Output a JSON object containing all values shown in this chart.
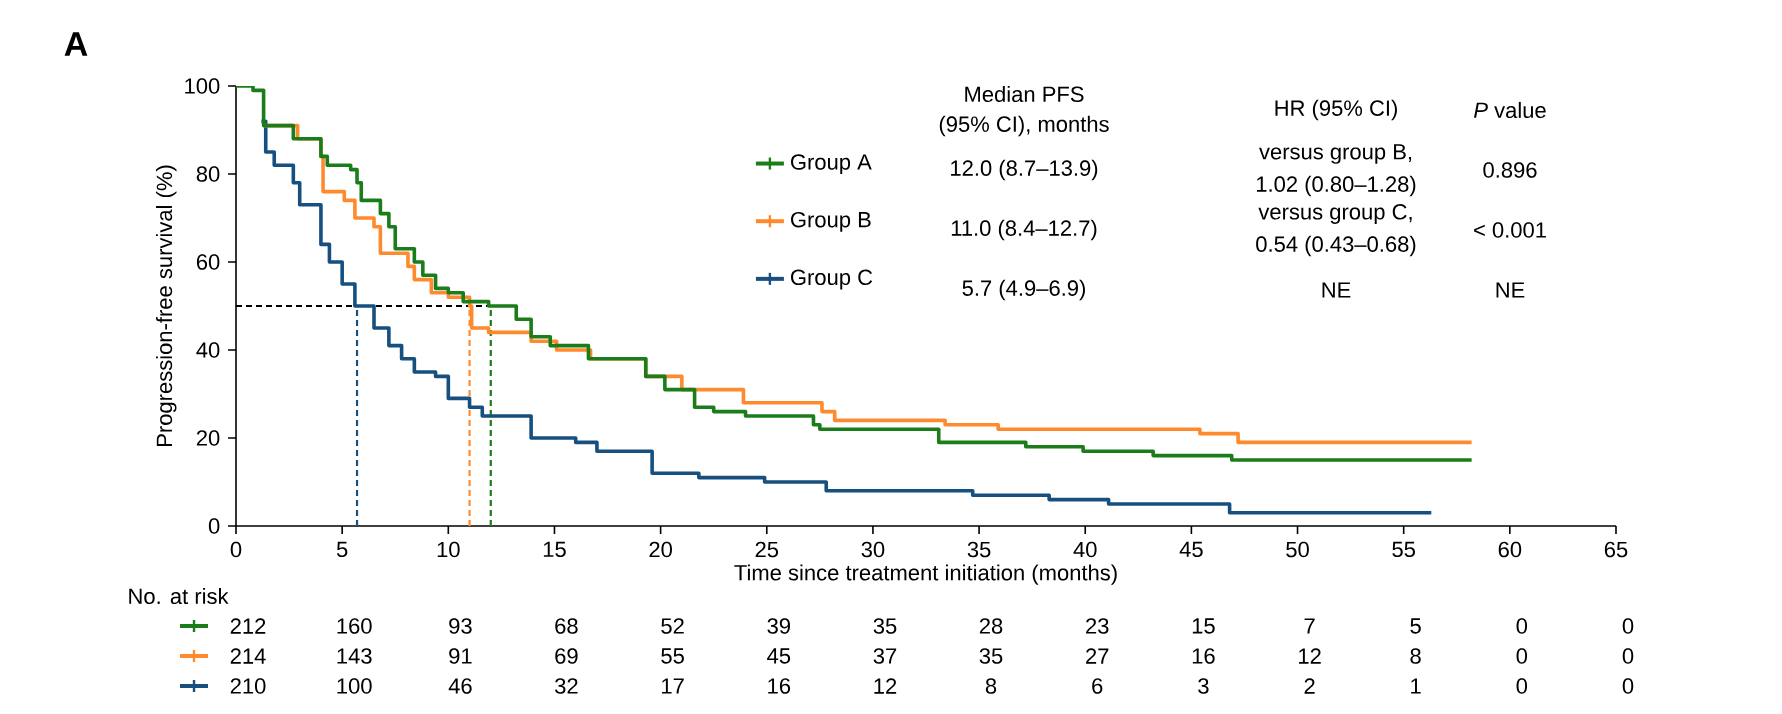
{
  "chart_data": {
    "type": "step",
    "title": "A",
    "xlabel": "Time since treatment initiation (months)",
    "ylabel": "Progression-free survival (%)",
    "xlim": [
      0,
      65
    ],
    "ylim": [
      0,
      100
    ],
    "xticks": [
      0,
      5,
      10,
      15,
      20,
      25,
      30,
      35,
      40,
      45,
      50,
      55,
      60,
      65
    ],
    "yticks": [
      0,
      20,
      40,
      60,
      80,
      100
    ],
    "legend": "top",
    "series": [
      {
        "name": "Group A",
        "color": "#1a7d1a",
        "x": [
          0,
          0.8,
          1.3,
          2.7,
          4.0,
          4.3,
          5.4,
          5.7,
          5.9,
          6.8,
          7.2,
          7.5,
          8.4,
          8.8,
          9.4,
          10.0,
          10.7,
          11.9,
          13.2,
          13.9,
          14.8,
          16.6,
          19.3,
          20.2,
          21.6,
          22.5,
          24.0,
          27.2,
          27.5,
          33.1,
          34.7,
          37.2,
          39.9,
          43.2,
          46.9,
          58.2
        ],
        "values": [
          100,
          99,
          91,
          88,
          84,
          82,
          81,
          78,
          74,
          71,
          68,
          63,
          60,
          57,
          54,
          53,
          51,
          50,
          47,
          43,
          41,
          38,
          34,
          31,
          27,
          26,
          25,
          23,
          22,
          19,
          19,
          18,
          17,
          16,
          15,
          15
        ]
      },
      {
        "name": "Group B",
        "color": "#ff8a2e",
        "x": [
          1.3,
          2.9,
          4.0,
          4.1,
          5.1,
          5.6,
          6.5,
          6.8,
          8.1,
          8.4,
          9.2,
          10.0,
          11.0,
          11.1,
          11.9,
          13.9,
          15.1,
          16.7,
          19.3,
          21.0,
          23.9,
          27.6,
          28.2,
          33.4,
          35.9,
          45.4,
          47.2,
          58.2
        ],
        "values": [
          91,
          88,
          84,
          76,
          74,
          70,
          68,
          62,
          59,
          56,
          53,
          52,
          50,
          45,
          44,
          42,
          40,
          38,
          34,
          31,
          28,
          26,
          24,
          23,
          22,
          21,
          19,
          19
        ]
      },
      {
        "name": "Group C",
        "color": "#174f7e",
        "x": [
          1.2,
          1.4,
          1.8,
          2.7,
          3.0,
          4.0,
          4.4,
          5.0,
          5.6,
          6.5,
          7.2,
          7.8,
          8.4,
          9.4,
          10.0,
          11.0,
          11.6,
          13.9,
          16.0,
          17.0,
          19.6,
          21.8,
          24.9,
          27.8,
          34.7,
          38.3,
          41.1,
          46.8,
          56.3
        ],
        "values": [
          92,
          85,
          82,
          78,
          73,
          64,
          60,
          55,
          50,
          45,
          41,
          38,
          35,
          34,
          29,
          27,
          25,
          20,
          19,
          17,
          12,
          11,
          10,
          8,
          7,
          6,
          5,
          3,
          3
        ]
      },
      {
        "type": "line",
        "line_style": "dashed",
        "color": "#000000",
        "x": [
          0,
          12.0
        ],
        "values": [
          50,
          50
        ]
      },
      {
        "type": "line",
        "line_style": "dashed",
        "color": "#1a7d1a",
        "x": [
          12.0,
          12.0
        ],
        "values": [
          0,
          50
        ]
      },
      {
        "type": "line",
        "line_style": "dashed",
        "color": "#ff8a2e",
        "x": [
          11.0,
          11.0
        ],
        "values": [
          0,
          50
        ]
      },
      {
        "type": "line",
        "line_style": "dashed",
        "color": "#174f7e",
        "x": [
          5.7,
          5.7
        ],
        "values": [
          0,
          50
        ]
      }
    ],
    "annotations": [
      "Median PFS",
      "(95% CI), months",
      "HR (95% CI)",
      "*P* value",
      "12.0 (8.7–13.9)",
      "versus group B,",
      "1.02 (0.80–1.28)",
      "0.896",
      "11.0 (8.4–12.7)",
      "versus group C,",
      "0.54 (0.43–0.68)",
      "< 0.001",
      "5.7 (4.9–6.9)",
      "NE",
      "NE",
      "No. at risk",
      "212",
      "160",
      "93",
      "68",
      "52",
      "39",
      "35",
      "28",
      "23",
      "15",
      "7",
      "5",
      "0",
      "0",
      "214",
      "143",
      "91",
      "69",
      "55",
      "45",
      "37",
      "35",
      "27",
      "16",
      "12",
      "8",
      "0",
      "0",
      "210",
      "100",
      "46",
      "32",
      "17",
      "16",
      "12",
      "8",
      "6",
      "3",
      "2",
      "1",
      "0",
      "0"
    ]
  }
}
